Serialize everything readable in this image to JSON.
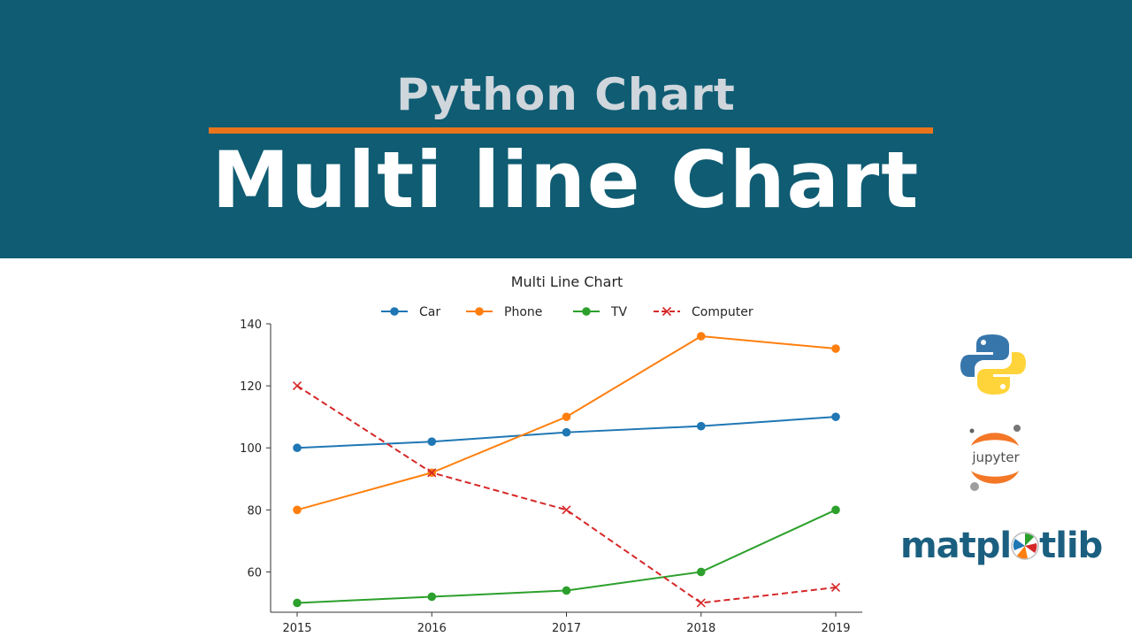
{
  "banner": {
    "subtitle": "Python Chart",
    "title": "Multi line Chart"
  },
  "logos": {
    "python": "python-logo",
    "jupyter": "jupyter",
    "matplotlib_prefix": "matpl",
    "matplotlib_suffix": "tlib"
  },
  "colors": {
    "banner_bg": "#0f5c73",
    "accent_rule": "#e8741c",
    "car": "#1f77b4",
    "phone": "#ff7f0e",
    "tv": "#2ca02c",
    "computer": "#d62728"
  },
  "chart_data": {
    "type": "line",
    "title": "Multi Line Chart",
    "xlabel": "",
    "ylabel": "",
    "x": [
      2015,
      2016,
      2017,
      2018,
      2019
    ],
    "yticks": [
      60,
      80,
      100,
      120,
      140
    ],
    "ylim": [
      47,
      140
    ],
    "legend_position": "top-center",
    "grid": false,
    "series": [
      {
        "name": "Car",
        "values": [
          100,
          102,
          105,
          107,
          110
        ],
        "color": "#1f77b4",
        "marker": "circle",
        "linestyle": "solid"
      },
      {
        "name": "Phone",
        "values": [
          80,
          92,
          110,
          136,
          132
        ],
        "color": "#ff7f0e",
        "marker": "circle",
        "linestyle": "solid"
      },
      {
        "name": "TV",
        "values": [
          50,
          52,
          54,
          60,
          80
        ],
        "color": "#2ca02c",
        "marker": "circle",
        "linestyle": "solid"
      },
      {
        "name": "Computer",
        "values": [
          120,
          92,
          80,
          50,
          55
        ],
        "color": "#d62728",
        "marker": "x",
        "linestyle": "dashed"
      }
    ]
  }
}
